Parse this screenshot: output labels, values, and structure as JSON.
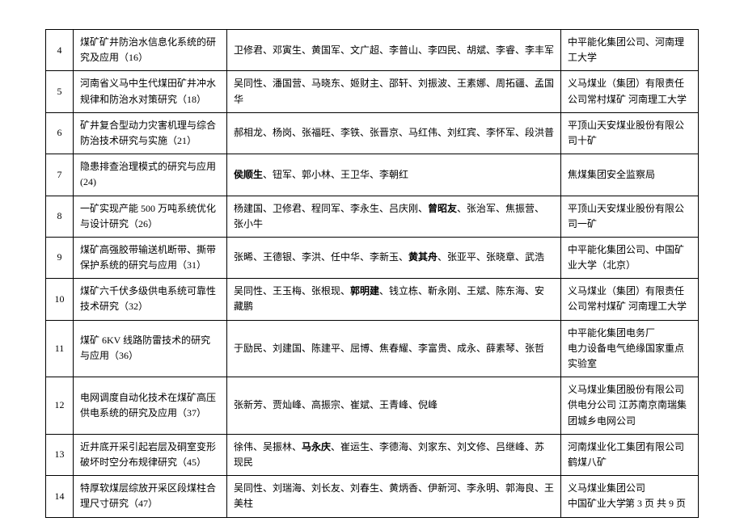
{
  "table": {
    "rows": [
      {
        "num": "4",
        "title": "煤矿矿井防治水信息化系统的研究及应用（16）",
        "people_parts": [
          {
            "t": "卫修君、邓寅生、黄国军、文广超、李普山、李四民、胡斌、李睿、李丰军",
            "b": false
          }
        ],
        "org": "中平能化集团公司、河南理工大学"
      },
      {
        "num": "5",
        "title": "河南省义马中生代煤田矿井冲水规律和防治水对策研究（18）",
        "people_parts": [
          {
            "t": "吴同性、潘国营、马晓东、姬财主、邵轩、刘振波、王素娜、周拓疆、孟国华",
            "b": false
          }
        ],
        "org": "义马煤业（集团）有限责任公司常村煤矿 河南理工大学"
      },
      {
        "num": "6",
        "title": "矿井复合型动力灾害机理与综合防治技术研究与实施（21）",
        "people_parts": [
          {
            "t": "郝相龙、杨岗、张福旺、李铁、张晋京、马红伟、刘红宾、李怀军、段洪普",
            "b": false
          }
        ],
        "org": "平顶山天安煤业股份有限公司十矿"
      },
      {
        "num": "7",
        "title": "隐患排查治理模式的研究与应用(24)",
        "people_parts": [
          {
            "t": "侯顺生",
            "b": true
          },
          {
            "t": "、钮军、郭小林、王卫华、李朝红",
            "b": false
          }
        ],
        "org": "焦煤集团安全监察局"
      },
      {
        "num": "8",
        "title": "一矿实现产能 500 万吨系统优化与设计研究（26）",
        "people_parts": [
          {
            "t": "杨建国、卫修君、程同军、李永生、吕庆刚、",
            "b": false
          },
          {
            "t": "曾昭友",
            "b": true
          },
          {
            "t": "、张治军、焦振营、张小牛",
            "b": false
          }
        ],
        "org": "平顶山天安煤业股份有限公司一矿"
      },
      {
        "num": "9",
        "title": "煤矿高强胶带输送机断带、撕带保护系统的研究与应用（31）",
        "people_parts": [
          {
            "t": "张晞、王德银、李洪、任中华、李新玉、",
            "b": false
          },
          {
            "t": "黄其舟",
            "b": true
          },
          {
            "t": "、张亚平、张晓章、武浩",
            "b": false
          }
        ],
        "org": "中平能化集团公司、中国矿业大学（北京）"
      },
      {
        "num": "10",
        "title": "煤矿六千伏多级供电系统可靠性技术研究（32）",
        "people_parts": [
          {
            "t": "吴同性、王玉梅、张根现、",
            "b": false
          },
          {
            "t": "郭明建",
            "b": true
          },
          {
            "t": "、钱立栋、靳永刚、王斌、陈东海、安藏鹏",
            "b": false
          }
        ],
        "org": "义马煤业（集团）有限责任公司常村煤矿 河南理工大学"
      },
      {
        "num": "11",
        "title": "煤矿 6KV 线路防雷技术的研究与应用（36）",
        "people_parts": [
          {
            "t": "于励民、刘建国、陈建平、屈博、焦春耀、李富贵、成永、薛素琴、张哲",
            "b": false
          }
        ],
        "org": "中平能化集团电务厂\n电力设备电气绝缘国家重点实验室"
      },
      {
        "num": "12",
        "title": "电网调度自动化技术在煤矿高压供电系统的研究及应用（37）",
        "people_parts": [
          {
            "t": "张新芳、贾灿峰、高振宗、崔斌、王青峰、倪峰",
            "b": false
          }
        ],
        "org": "义马煤业集团股份有限公司供电分公司  江苏南京南瑞集团城乡电网公司"
      },
      {
        "num": "13",
        "title": "近井底开采引起岩层及硐室变形破坏时空分布规律研究（45）",
        "people_parts": [
          {
            "t": "徐伟、吴振林、",
            "b": false
          },
          {
            "t": "马永庆",
            "b": true
          },
          {
            "t": "、崔运生、李德海、刘家东、刘文修、吕继峰、苏现民",
            "b": false
          }
        ],
        "org": "河南煤业化工集团有限公司鹤煤八矿"
      },
      {
        "num": "14",
        "title": "特厚软煤层综放开采区段煤柱合理尺寸研究（47）",
        "people_parts": [
          {
            "t": "吴同性、刘瑞海、刘长友、刘春生、黄炳香、伊新河、李永明、郭海良、王美柱",
            "b": false
          }
        ],
        "org": "义马煤业集团公司\n中国矿业大学"
      }
    ]
  },
  "footer": "第 3 页 共 9 页"
}
